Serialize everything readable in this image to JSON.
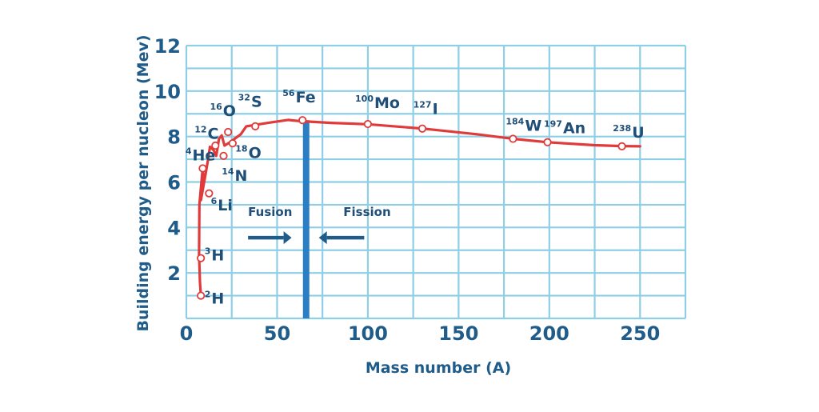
{
  "chart_data": {
    "type": "line",
    "xlabel": "Mass number (A)",
    "ylabel": "Building energy per nucleon (Mev)",
    "xlim": [
      0,
      275
    ],
    "ylim": [
      0,
      12
    ],
    "xticks": [
      "0",
      "50",
      "100",
      "150",
      "200",
      "250"
    ],
    "yticks": [
      "2",
      "4",
      "6",
      "8",
      "10",
      "12"
    ],
    "grid": true,
    "line_color": "#e03a3a",
    "grid_color": "#8ecfe6",
    "axis_text_color": "#1f5c8a",
    "divider_color": "#2a7fc4",
    "arrow_color": "#1f5c8a",
    "curve": {
      "x": [
        8,
        7.5,
        7,
        7.2,
        9,
        9.5,
        8,
        10.5,
        12,
        13,
        15,
        16.5,
        18,
        19.5,
        21,
        24,
        30,
        33,
        45,
        56,
        62,
        80,
        100,
        130,
        160,
        180,
        199,
        225,
        240,
        250
      ],
      "y": [
        1.0,
        1.6,
        2.8,
        5.0,
        6.6,
        6.0,
        5.2,
        6.3,
        7.0,
        7.55,
        7.4,
        7.15,
        7.9,
        8.05,
        7.6,
        7.75,
        8.1,
        8.45,
        8.6,
        8.73,
        8.68,
        8.6,
        8.54,
        8.35,
        8.1,
        7.9,
        7.75,
        7.62,
        7.58,
        7.57
      ]
    },
    "points": [
      {
        "x": 8,
        "y": 1.0
      },
      {
        "x": 8,
        "y": 2.65
      },
      {
        "x": 9,
        "y": 6.6
      },
      {
        "x": 12.5,
        "y": 5.5
      },
      {
        "x": 16,
        "y": 7.6
      },
      {
        "x": 20.5,
        "y": 7.15
      },
      {
        "x": 23,
        "y": 8.2
      },
      {
        "x": 25.5,
        "y": 7.7
      },
      {
        "x": 38,
        "y": 8.45
      },
      {
        "x": 64,
        "y": 8.72
      },
      {
        "x": 100,
        "y": 8.55
      },
      {
        "x": 130,
        "y": 8.35
      },
      {
        "x": 180,
        "y": 7.9
      },
      {
        "x": 199,
        "y": 7.75
      },
      {
        "x": 240,
        "y": 7.57
      }
    ],
    "isotopes": [
      {
        "sup": "2",
        "sym": "H",
        "x": 10,
        "y": 0.65
      },
      {
        "sup": "3",
        "sym": "H",
        "x": 10,
        "y": 2.55
      },
      {
        "sup": "6",
        "sym": "Li",
        "x": 13.5,
        "y": 4.75
      },
      {
        "sup": "4",
        "sym": "He",
        "x": -0.5,
        "y": 6.95
      },
      {
        "sup": "12",
        "sym": "C",
        "x": 4.5,
        "y": 7.9
      },
      {
        "sup": "14",
        "sym": "N",
        "x": 19.5,
        "y": 6.05
      },
      {
        "sup": "18",
        "sym": "O",
        "x": 27,
        "y": 7.05
      },
      {
        "sup": "16",
        "sym": "O",
        "x": 13,
        "y": 8.9
      },
      {
        "sup": "32",
        "sym": "S",
        "x": 28.5,
        "y": 9.3
      },
      {
        "sup": "56",
        "sym": "Fe",
        "x": 53,
        "y": 9.5
      },
      {
        "sup": "100",
        "sym": "Mo",
        "x": 93,
        "y": 9.25
      },
      {
        "sup": "127",
        "sym": "I",
        "x": 125,
        "y": 9.0
      },
      {
        "sup": "184",
        "sym": "W",
        "x": 176,
        "y": 8.25
      },
      {
        "sup": "197",
        "sym": "An",
        "x": 197,
        "y": 8.15
      },
      {
        "sup": "238",
        "sym": "U",
        "x": 235,
        "y": 7.95
      }
    ],
    "divider_x": 66,
    "regions": [
      {
        "label": "Fusion",
        "x": 34,
        "y": 4.5
      },
      {
        "label": "Fission",
        "x": 86.5,
        "y": 4.5
      }
    ],
    "arrows": [
      {
        "from": 34,
        "to": 58,
        "y": 3.55
      },
      {
        "from": 98,
        "to": 73,
        "y": 3.55
      }
    ]
  }
}
